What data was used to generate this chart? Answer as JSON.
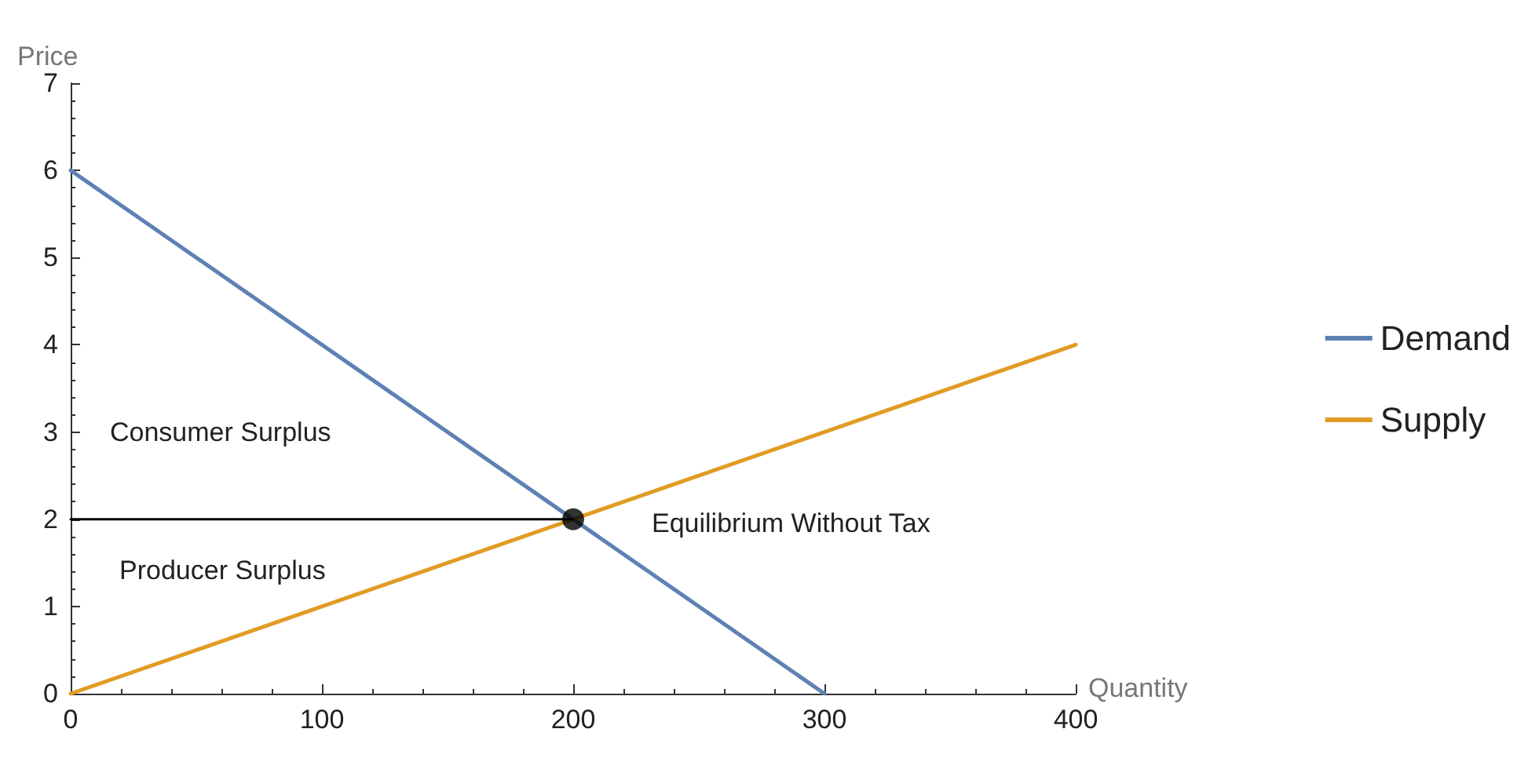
{
  "chart_data": {
    "type": "line",
    "xlabel": "Quantity",
    "ylabel": "Price",
    "xlim": [
      0,
      400
    ],
    "xticks": [
      0,
      100,
      200,
      300,
      400
    ],
    "ylim": [
      0,
      7
    ],
    "yticks": [
      0,
      1,
      2,
      3,
      4,
      5,
      6,
      7
    ],
    "grid": false,
    "legend": "right",
    "marker": "none",
    "series": [
      {
        "name": "Demand",
        "color": "#5e81b5",
        "x": [
          0,
          300
        ],
        "values": [
          6,
          0
        ]
      },
      {
        "name": "Supply",
        "color": "#e19c24",
        "x": [
          0,
          400
        ],
        "values": [
          0,
          4
        ]
      },
      {
        "color": "#000000",
        "x": [
          0,
          200
        ],
        "values": [
          2,
          2
        ]
      },
      {
        "type": "scatter",
        "marker": "circle",
        "color": "#000000",
        "x": [
          200
        ],
        "values": [
          2
        ]
      }
    ],
    "annotations": [
      "Consumer Surplus",
      "Producer Surplus",
      "Equilibrium Without Tax"
    ]
  }
}
